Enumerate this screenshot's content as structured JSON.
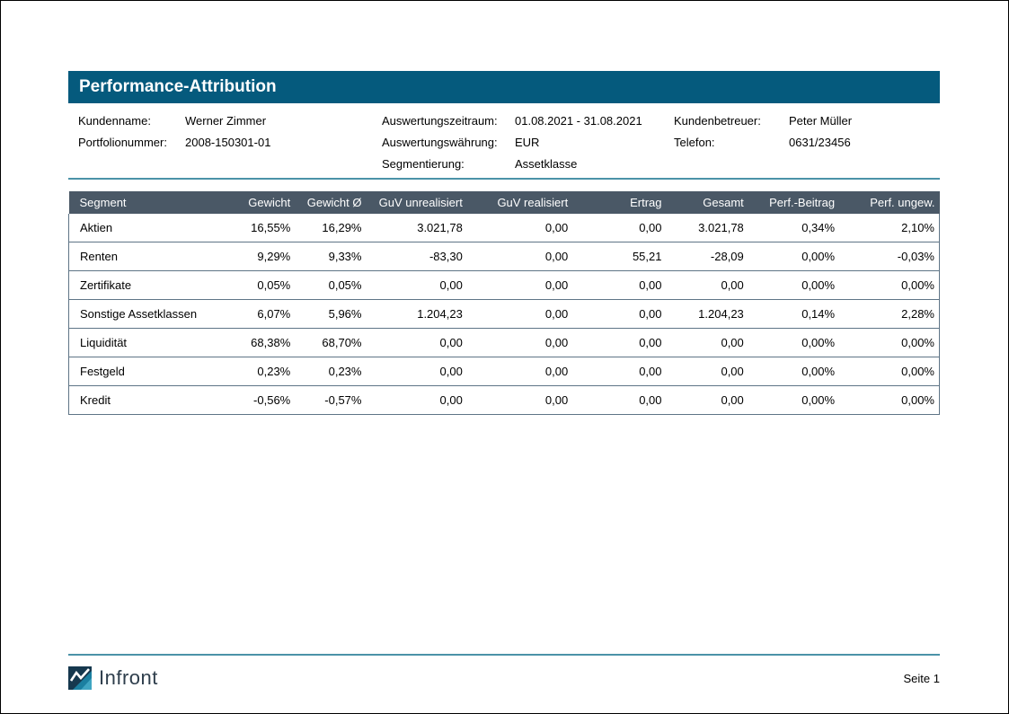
{
  "title": "Performance-Attribution",
  "brand": "Infront",
  "page_number": "Seite 1",
  "colors": {
    "header_bar": "#055A7D",
    "table_header_bg": "#4A5866",
    "rule_teal": "#4B93A8",
    "row_border": "#5E7486",
    "logo_dark": "#16384E",
    "logo_teal": "#1B7FA0",
    "logo_light_teal": "#3FA5C2"
  },
  "meta": {
    "col1": [
      {
        "label": "Kundenname:",
        "value": "Werner Zimmer"
      },
      {
        "label": "Portfolionummer:",
        "value": "2008-150301-01"
      }
    ],
    "col2": [
      {
        "label": "Auswertungszeitraum:",
        "value": "01.08.2021 - 31.08.2021"
      },
      {
        "label": "Auswertungswährung:",
        "value": "EUR"
      },
      {
        "label": "Segmentierung:",
        "value": "Assetklasse"
      }
    ],
    "col3": [
      {
        "label": "Kundenbetreuer:",
        "value": "Peter Müller"
      },
      {
        "label": "Telefon:",
        "value": "0631/23456"
      }
    ]
  },
  "table": {
    "headers": [
      "Segment",
      "Gewicht",
      "Gewicht Ø",
      "GuV unrealisiert",
      "GuV realisiert",
      "Ertrag",
      "Gesamt",
      "Perf.-Beitrag",
      "Perf. ungew."
    ],
    "rows": [
      [
        "Aktien",
        "16,55%",
        "16,29%",
        "3.021,78",
        "0,00",
        "0,00",
        "3.021,78",
        "0,34%",
        "2,10%"
      ],
      [
        "Renten",
        "9,29%",
        "9,33%",
        "-83,30",
        "0,00",
        "55,21",
        "-28,09",
        "0,00%",
        "-0,03%"
      ],
      [
        "Zertifikate",
        "0,05%",
        "0,05%",
        "0,00",
        "0,00",
        "0,00",
        "0,00",
        "0,00%",
        "0,00%"
      ],
      [
        "Sonstige Assetklassen",
        "6,07%",
        "5,96%",
        "1.204,23",
        "0,00",
        "0,00",
        "1.204,23",
        "0,14%",
        "2,28%"
      ],
      [
        "Liquidität",
        "68,38%",
        "68,70%",
        "0,00",
        "0,00",
        "0,00",
        "0,00",
        "0,00%",
        "0,00%"
      ],
      [
        "Festgeld",
        "0,23%",
        "0,23%",
        "0,00",
        "0,00",
        "0,00",
        "0,00",
        "0,00%",
        "0,00%"
      ],
      [
        "Kredit",
        "-0,56%",
        "-0,57%",
        "0,00",
        "0,00",
        "0,00",
        "0,00",
        "0,00%",
        "0,00%"
      ]
    ]
  }
}
